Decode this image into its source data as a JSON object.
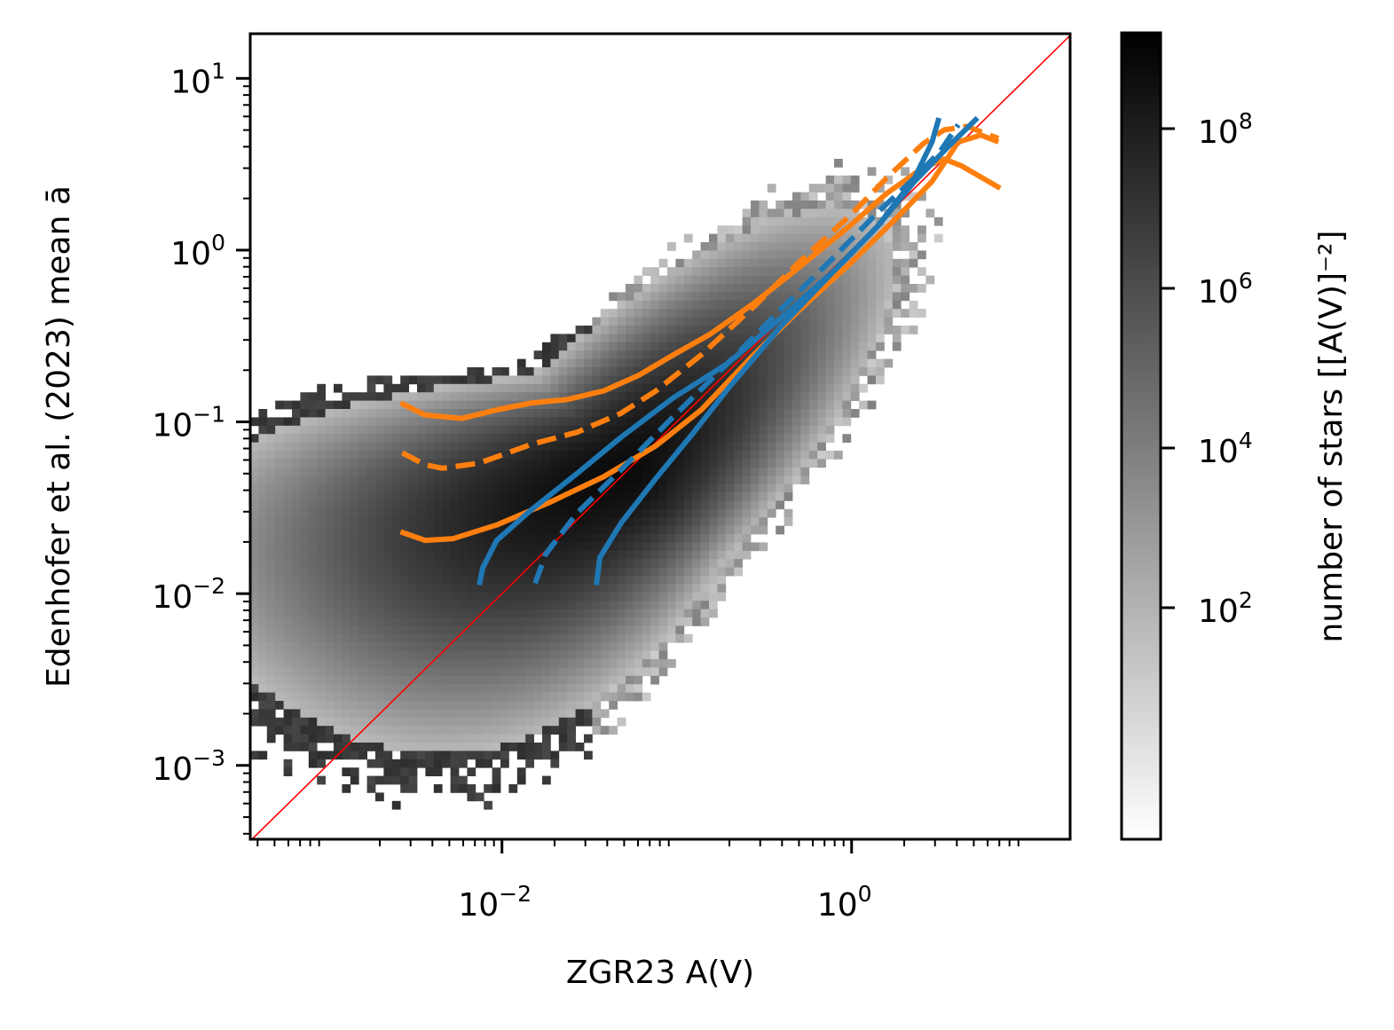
{
  "chart_data": {
    "type": "heatmap",
    "title": "",
    "xlabel": "ZGR23 A(V)",
    "ylabel": "Edenhofer et al. (2023) mean ā",
    "xscale": "log",
    "yscale": "log",
    "xlim_log10": [
      -3.44,
      1.25
    ],
    "ylim_log10": [
      -3.43,
      1.26
    ],
    "x_ticks": [
      {
        "log10": -2,
        "base": "10",
        "exp": "−2"
      },
      {
        "log10": 0,
        "base": "10",
        "exp": "0"
      }
    ],
    "y_ticks": [
      {
        "log10": 1,
        "base": "10",
        "exp": "1"
      },
      {
        "log10": 0,
        "base": "10",
        "exp": "0"
      },
      {
        "log10": -1,
        "base": "10",
        "exp": "−1"
      },
      {
        "log10": -2,
        "base": "10",
        "exp": "−2"
      },
      {
        "log10": -3,
        "base": "10",
        "exp": "−3"
      }
    ],
    "grid": false,
    "histogram": {
      "description": "2D log-density of star counts, dark ridge along y=x with a broad tail at low A(V)",
      "peak_log10": [
        -1.2,
        -1.35
      ],
      "colormap": "Greys"
    },
    "colorbar": {
      "label": "number of stars [[A(V)]⁻²]",
      "scale": "log",
      "range_log10": [
        -0.9,
        9.2
      ],
      "ticks": [
        {
          "log10": 8,
          "base": "10",
          "exp": "8"
        },
        {
          "log10": 6,
          "base": "10",
          "exp": "6"
        },
        {
          "log10": 4,
          "base": "10",
          "exp": "4"
        },
        {
          "log10": 2,
          "base": "10",
          "exp": "2"
        }
      ]
    },
    "reference_line": {
      "name": "one-to-one",
      "color": "#ff0000",
      "equation": "y = x"
    },
    "series": [
      {
        "name": "orange-upper",
        "color": "#ff7f0e",
        "style": "solid",
        "points_log10": [
          [
            -2.58,
            -0.89
          ],
          [
            -2.44,
            -0.96
          ],
          [
            -2.23,
            -0.98
          ],
          [
            -2.03,
            -0.93
          ],
          [
            -1.83,
            -0.89
          ],
          [
            -1.63,
            -0.87
          ],
          [
            -1.42,
            -0.82
          ],
          [
            -1.22,
            -0.73
          ],
          [
            -1.02,
            -0.61
          ],
          [
            -0.81,
            -0.49
          ],
          [
            -0.56,
            -0.31
          ],
          [
            -0.3,
            -0.1
          ],
          [
            0.0,
            0.15
          ],
          [
            0.2,
            0.33
          ],
          [
            0.41,
            0.48
          ],
          [
            0.53,
            0.53
          ],
          [
            0.63,
            0.49
          ],
          [
            0.85,
            0.36
          ]
        ]
      },
      {
        "name": "orange-median",
        "color": "#ff7f0e",
        "style": "dashed",
        "points_log10": [
          [
            -2.57,
            -1.18
          ],
          [
            -2.44,
            -1.25
          ],
          [
            -2.34,
            -1.27
          ],
          [
            -2.13,
            -1.24
          ],
          [
            -1.83,
            -1.13
          ],
          [
            -1.57,
            -1.06
          ],
          [
            -1.32,
            -0.95
          ],
          [
            -1.12,
            -0.82
          ],
          [
            -0.86,
            -0.61
          ],
          [
            -0.56,
            -0.33
          ],
          [
            -0.3,
            -0.07
          ],
          [
            0.0,
            0.21
          ],
          [
            0.2,
            0.42
          ],
          [
            0.41,
            0.62
          ],
          [
            0.53,
            0.7
          ],
          [
            0.66,
            0.72
          ],
          [
            0.84,
            0.65
          ]
        ]
      },
      {
        "name": "orange-lower",
        "color": "#ff7f0e",
        "style": "solid",
        "points_log10": [
          [
            -2.58,
            -1.64
          ],
          [
            -2.44,
            -1.69
          ],
          [
            -2.28,
            -1.68
          ],
          [
            -2.03,
            -1.6
          ],
          [
            -1.73,
            -1.47
          ],
          [
            -1.42,
            -1.32
          ],
          [
            -1.12,
            -1.14
          ],
          [
            -0.86,
            -0.93
          ],
          [
            -0.56,
            -0.61
          ],
          [
            -0.3,
            -0.35
          ],
          [
            0.0,
            -0.07
          ],
          [
            0.25,
            0.18
          ],
          [
            0.46,
            0.4
          ],
          [
            0.61,
            0.63
          ],
          [
            0.74,
            0.67
          ],
          [
            0.84,
            0.63
          ]
        ]
      },
      {
        "name": "blue-lower-bound",
        "color": "#1f77b4",
        "style": "solid",
        "points_log10": [
          [
            -2.13,
            -1.95
          ],
          [
            -2.11,
            -1.85
          ],
          [
            -2.03,
            -1.69
          ],
          [
            -1.83,
            -1.51
          ],
          [
            -1.57,
            -1.3
          ],
          [
            -1.32,
            -1.09
          ],
          [
            -1.02,
            -0.86
          ],
          [
            -0.71,
            -0.66
          ],
          [
            -0.41,
            -0.4
          ],
          [
            -0.1,
            -0.12
          ],
          [
            0.15,
            0.14
          ],
          [
            0.36,
            0.42
          ],
          [
            0.46,
            0.63
          ],
          [
            0.5,
            0.77
          ]
        ]
      },
      {
        "name": "blue-median",
        "color": "#1f77b4",
        "style": "dashed",
        "points_log10": [
          [
            -1.81,
            -1.94
          ],
          [
            -1.75,
            -1.77
          ],
          [
            -1.57,
            -1.53
          ],
          [
            -1.32,
            -1.28
          ],
          [
            -1.02,
            -0.97
          ],
          [
            -0.71,
            -0.66
          ],
          [
            -0.41,
            -0.35
          ],
          [
            -0.1,
            -0.04
          ],
          [
            0.15,
            0.22
          ],
          [
            0.36,
            0.42
          ],
          [
            0.51,
            0.58
          ],
          [
            0.61,
            0.73
          ]
        ]
      },
      {
        "name": "blue-upper-bound",
        "color": "#1f77b4",
        "style": "solid",
        "points_log10": [
          [
            -1.46,
            -1.95
          ],
          [
            -1.44,
            -1.79
          ],
          [
            -1.32,
            -1.59
          ],
          [
            -1.12,
            -1.33
          ],
          [
            -0.91,
            -1.07
          ],
          [
            -0.71,
            -0.81
          ],
          [
            -0.41,
            -0.45
          ],
          [
            -0.1,
            -0.12
          ],
          [
            0.15,
            0.14
          ],
          [
            0.36,
            0.4
          ],
          [
            0.56,
            0.61
          ],
          [
            0.72,
            0.77
          ]
        ]
      }
    ]
  }
}
